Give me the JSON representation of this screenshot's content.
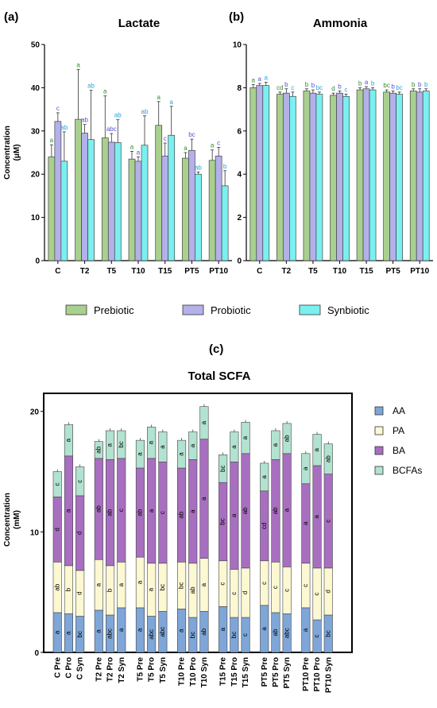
{
  "panels": {
    "a": "(a)",
    "b": "(b)",
    "c": "(c)"
  },
  "legend_top": [
    "Prebiotic",
    "Probiotic",
    "Synbiotic"
  ],
  "colors": {
    "pre": "#a9d08e",
    "pro": "#b4b0ea",
    "syn": "#7af0f0",
    "pre_text": "#2e8b2e",
    "pro_text": "#5a4ed1",
    "syn_text": "#27a3d6",
    "AA": "#7ea6d8",
    "PA": "#fbf8d2",
    "BA": "#a86fc0",
    "BCFAs": "#b2e2d0"
  },
  "chart_data": [
    {
      "type": "bar",
      "title": "Lactate",
      "ylabel": "Concentration\n(μM)",
      "ylim": [
        0,
        50
      ],
      "yticks": [
        0,
        10,
        20,
        30,
        40,
        50
      ],
      "categories": [
        "C",
        "T2",
        "T5",
        "T10",
        "T15",
        "PT5",
        "PT10"
      ],
      "series": [
        {
          "name": "Prebiotic",
          "values": [
            24,
            32.7,
            28.4,
            23.5,
            31.3,
            23.7,
            23.2
          ],
          "err": [
            2.8,
            11.5,
            9.7,
            1.8,
            5.5,
            1.3,
            2.4
          ],
          "labels": [
            "a",
            "a",
            "a",
            "a",
            "a",
            "a",
            "a"
          ]
        },
        {
          "name": "Probiotic",
          "values": [
            32.2,
            29.5,
            27.4,
            23,
            24.2,
            25.5,
            24.2
          ],
          "err": [
            2,
            2,
            2,
            1,
            3,
            2.6,
            2
          ],
          "labels": [
            "c",
            "ab",
            "abc",
            "a",
            "c",
            "bc",
            "c"
          ]
        },
        {
          "name": "Synbiotic",
          "values": [
            23,
            28,
            27.3,
            26.7,
            29,
            20,
            17.3
          ],
          "err": [
            6.8,
            11.4,
            5.3,
            6.8,
            6.7,
            0.5,
            3.5
          ],
          "labels": [
            "ab",
            "ab",
            "ab",
            "ab",
            "a",
            "ab",
            "b"
          ]
        }
      ]
    },
    {
      "type": "bar",
      "title": "Ammonia",
      "ylim": [
        0,
        10
      ],
      "yticks": [
        0,
        2,
        4,
        6,
        8,
        10
      ],
      "categories": [
        "C",
        "T2",
        "T5",
        "T10",
        "T15",
        "PT5",
        "PT10"
      ],
      "series": [
        {
          "name": "Prebiotic",
          "values": [
            8,
            7.7,
            7.85,
            7.65,
            7.9,
            7.8,
            7.85
          ],
          "err": [
            0.15,
            0.1,
            0.1,
            0.1,
            0.1,
            0.1,
            0.1
          ],
          "labels": [
            "a",
            "cd",
            "b",
            "d",
            "b",
            "bc",
            "b"
          ]
        },
        {
          "name": "Probiotic",
          "values": [
            8.1,
            7.75,
            7.75,
            7.75,
            7.95,
            7.75,
            7.8
          ],
          "err": [
            0.1,
            0.2,
            0.15,
            0.1,
            0.1,
            0.1,
            0.15
          ],
          "labels": [
            "a",
            "b",
            "b",
            "b",
            "a",
            "b",
            "b"
          ]
        },
        {
          "name": "Synbiotic",
          "values": [
            8.1,
            7.6,
            7.7,
            7.6,
            7.9,
            7.7,
            7.85
          ],
          "err": [
            0.15,
            0.2,
            0.1,
            0.1,
            0.1,
            0.1,
            0.1
          ],
          "labels": [
            "a",
            "c",
            "bc",
            "c",
            "b",
            "bc",
            "b"
          ]
        }
      ]
    },
    {
      "type": "bar",
      "stacked": true,
      "title": "Total SCFA",
      "ylabel": "Concentration\n(mM)",
      "ylim": [
        0,
        21.5
      ],
      "yticks": [
        0,
        10,
        20
      ],
      "categories": [
        "C Pre",
        "C Pro",
        "C Syn",
        "T2 Pre",
        "T2 Pro",
        "T2 Syn",
        "T5 Pre",
        "T5 Pro",
        "T5 Syn",
        "T10 Pre",
        "T10 Pro",
        "T10 Syn",
        "T15 Pre",
        "T15 Pro",
        "T15 Syn",
        "PT5 Pre",
        "PT5 Pro",
        "PT5 Syn",
        "PT10 Pre",
        "PT10 Pro",
        "PT10 Syn"
      ],
      "legend": [
        "AA",
        "PA",
        "BA",
        "BCFAs"
      ],
      "series": [
        {
          "name": "AA",
          "values": [
            3.3,
            3.2,
            3.0,
            3.5,
            3.1,
            3.7,
            3.7,
            3.0,
            3.4,
            3.6,
            2.9,
            3.4,
            3.8,
            2.9,
            2.9,
            3.9,
            3.3,
            3.2,
            3.7,
            2.7,
            3.1
          ],
          "labels": [
            "a",
            "a",
            "bc",
            "a",
            "abc",
            "a",
            "a",
            "abc",
            "abc",
            "a",
            "bc",
            "ab",
            "a",
            "bc",
            "c",
            "a",
            "ab",
            "abc",
            "a",
            "c",
            "bc"
          ]
        },
        {
          "name": "PA",
          "values": [
            4.2,
            4.0,
            3.8,
            4.2,
            4.1,
            3.8,
            4.2,
            4.4,
            4.0,
            3.9,
            4.5,
            4.4,
            3.8,
            4.0,
            4.1,
            3.7,
            4.2,
            3.9,
            3.7,
            4.3,
            3.9
          ],
          "labels": [
            "ab",
            "b",
            "d",
            "a",
            "b",
            "a",
            "a",
            "a",
            "bc",
            "bc",
            "ab",
            "a",
            "c",
            "c",
            "d",
            "c",
            "c",
            "c",
            "c",
            "c",
            "d"
          ]
        },
        {
          "name": "BA",
          "values": [
            5.4,
            9.1,
            6.2,
            8.4,
            8.8,
            8.6,
            7.4,
            8.7,
            8.4,
            7.8,
            8.6,
            9.9,
            6.5,
            8.9,
            9.5,
            5.8,
            8.5,
            9.4,
            6.6,
            8.5,
            7.8
          ],
          "labels": [
            "d",
            "a",
            "d",
            "ab",
            "ab",
            "c",
            "ab",
            "a",
            "c",
            "ab",
            "a",
            "a",
            "bc",
            "a",
            "ab",
            "cd",
            "ab",
            "a",
            "a",
            "a",
            "c"
          ]
        },
        {
          "name": "BCFAs",
          "values": [
            2.1,
            2.6,
            2.4,
            1.4,
            2.4,
            2.3,
            2.3,
            2.6,
            2.5,
            2.3,
            2.3,
            2.7,
            2.3,
            2.5,
            2.6,
            2.3,
            2.4,
            2.5,
            2.5,
            2.6,
            2.5
          ],
          "labels": [
            "c",
            "a",
            "c",
            "ab",
            "a",
            "bc",
            "a",
            "a",
            "a",
            "a",
            "a",
            "a",
            "bc",
            "a",
            "a",
            "a",
            "a",
            "ab",
            "a",
            "a",
            "ab"
          ]
        }
      ]
    }
  ]
}
